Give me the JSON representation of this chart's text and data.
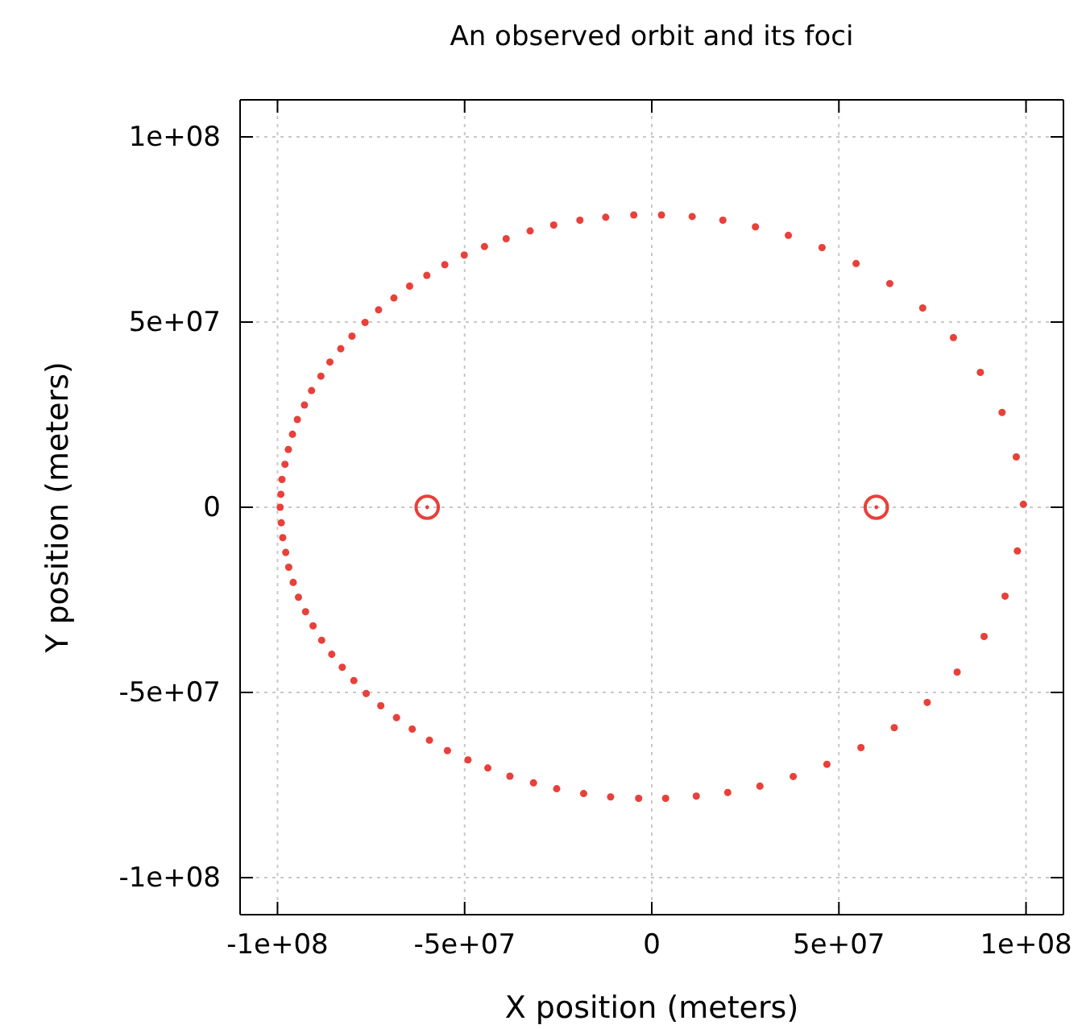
{
  "chart_data": {
    "type": "scatter",
    "title": "An observed orbit and its foci",
    "xlabel": "X position (meters)",
    "ylabel": "Y position (meters)",
    "xlim": [
      -110000000.0,
      110000000.0
    ],
    "ylim": [
      -110000000.0,
      110000000.0
    ],
    "xticks": [
      {
        "value": -100000000.0,
        "label": "-1e+08"
      },
      {
        "value": -50000000.0,
        "label": "-5e+07"
      },
      0,
      {
        "value": 50000000.0,
        "label": "5e+07"
      },
      {
        "value": 100000000.0,
        "label": "1e+08"
      }
    ],
    "yticks": [
      {
        "value": -100000000.0,
        "label": "-1e+08"
      },
      {
        "value": -50000000.0,
        "label": "-5e+07"
      },
      0,
      {
        "value": 50000000.0,
        "label": "5e+07"
      },
      {
        "value": 100000000.0,
        "label": "1e+08"
      }
    ],
    "grid": true,
    "marker": "circle",
    "series": [
      {
        "color": "#e8403a",
        "x": [
          -99300000.0,
          -99100000.0,
          -98800000.0,
          -98000000.0,
          -97100000.0,
          -96000000.0,
          -94700000.0,
          -92800000.0,
          -90900000.0,
          -88400000.0,
          -86000000.0,
          -83100000.0,
          -80100000.0,
          -76600000.0,
          -73000000.0,
          -68900000.0,
          -64700000.0,
          -60100000.0,
          -55300000.0,
          -50100000.0,
          -44700000.0,
          -38900000.0,
          -32500000.0,
          -26200000.0,
          -19200000.0,
          -12300000.0,
          -4800000.0,
          2600000.0,
          10800000.0,
          19000000.0,
          27700000.0,
          36500000.0,
          45500000.0,
          54600000.0,
          63600000.0,
          72400000.0,
          80600000.0,
          87800000.0,
          93600000.0,
          97400000.0,
          99300000.0,
          97700000.0,
          94400000.0,
          88800000.0,
          81600000.0,
          73600000.0,
          64800000.0,
          55900000.0,
          46800000.0,
          37800000.0,
          28900000.0,
          20300000.0,
          11900000.0,
          3700000.0,
          -3500000.0,
          -11000000.0,
          -18200000.0,
          -25400000.0,
          -31600000.0,
          -37900000.0,
          -43800000.0,
          -49100000.0,
          -54600000.0,
          -59400000.0,
          -64000000.0,
          -68200000.0,
          -72400000.0,
          -76300000.0,
          -79600000.0,
          -82700000.0,
          -85500000.0,
          -88200000.0,
          -90500000.0,
          -92500000.0,
          -94400000.0,
          -95800000.0,
          -97000000.0,
          -97800000.0,
          -98600000.0,
          -99000000.0
        ],
        "values": [
          0,
          3500000.0,
          7500000.0,
          11600000.0,
          15600000.0,
          19700000.0,
          23700000.0,
          27600000.0,
          31500000.0,
          35400000.0,
          39200000.0,
          42800000.0,
          46200000.0,
          49900000.0,
          53300000.0,
          56500000.0,
          59700000.0,
          62600000.0,
          65500000.0,
          68100000.0,
          70400000.0,
          72500000.0,
          74600000.0,
          76200000.0,
          77500000.0,
          78300000.0,
          78900000.0,
          78900000.0,
          78500000.0,
          77500000.0,
          75700000.0,
          73400000.0,
          70100000.0,
          65800000.0,
          60400000.0,
          53800000.0,
          45800000.0,
          36400000.0,
          25600000.0,
          13600000.0,
          800000.0,
          -11800000.0,
          -24000000.0,
          -34900000.0,
          -44500000.0,
          -52700000.0,
          -59500000.0,
          -64900000.0,
          -69400000.0,
          -72700000.0,
          -75300000.0,
          -77000000.0,
          -78000000.0,
          -78600000.0,
          -78600000.0,
          -78200000.0,
          -77300000.0,
          -76000000.0,
          -74400000.0,
          -72600000.0,
          -70400000.0,
          -68200000.0,
          -65700000.0,
          -62900000.0,
          -59900000.0,
          -56800000.0,
          -53600000.0,
          -50300000.0,
          -46800000.0,
          -43200000.0,
          -39700000.0,
          -35900000.0,
          -32000000.0,
          -28200000.0,
          -24300000.0,
          -20300000.0,
          -16200000.0,
          -12200000.0,
          -8200000.0,
          -4200000.0
        ]
      },
      {
        "color": "#e8403a",
        "x": [
          -60000000.0,
          60000000.0
        ],
        "values": [
          0,
          0
        ]
      }
    ]
  }
}
